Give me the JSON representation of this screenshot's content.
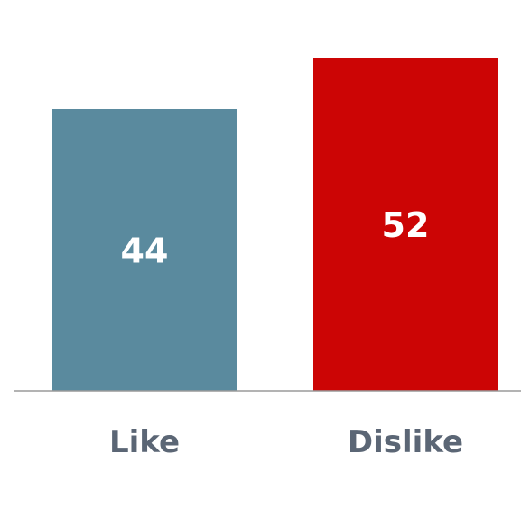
{
  "chart_data": {
    "type": "bar",
    "title": "",
    "xlabel": "",
    "ylabel": "",
    "categories": [
      "Like",
      "Dislike"
    ],
    "values": [
      44,
      52
    ],
    "colors": [
      "#5a8a9e",
      "#cc0505"
    ],
    "ylim": [
      0,
      52
    ],
    "grid": false,
    "legend": "none"
  },
  "colors": {
    "axis": "#9a9a9a",
    "label": "#5b6675",
    "value_text": "#ffffff"
  }
}
